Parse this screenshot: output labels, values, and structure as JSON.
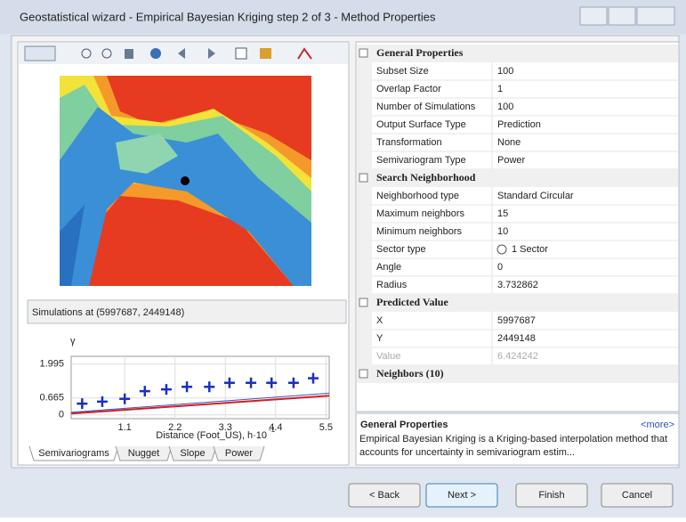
{
  "window": {
    "title": "Geostatistical wizard - Empirical Bayesian Kriging step 2 of 3 - Method Properties"
  },
  "simulations_label": "Simulations at (5997687, 2449148)",
  "semivariogram": {
    "y_label": "γ",
    "x_label": "Distance (Foot_US), h·10",
    "x_label_exp": "-1",
    "xlim": [
      -0.07,
      5.57
    ],
    "ylim": [
      -0.15,
      2.3
    ],
    "xticks": [
      1.1,
      2.2,
      3.3,
      4.4,
      5.5
    ],
    "yticks": [
      0,
      0.665,
      1.995
    ],
    "points": {
      "x": [
        0.17,
        0.61,
        1.1,
        1.54,
        2.01,
        2.46,
        2.95,
        3.39,
        3.86,
        4.31,
        4.79,
        5.22
      ],
      "y": [
        0.44,
        0.52,
        0.63,
        0.93,
        1.0,
        1.1,
        1.1,
        1.26,
        1.26,
        1.26,
        1.26,
        1.44
      ]
    }
  },
  "tabs": [
    "Semivariograms",
    "Nugget",
    "Slope",
    "Power"
  ],
  "properties": {
    "sections": [
      {
        "title": "General Properties",
        "rows": [
          [
            "Subset Size",
            "100"
          ],
          [
            "Overlap Factor",
            "1"
          ],
          [
            "Number of Simulations",
            "100"
          ],
          [
            "Output Surface Type",
            "Prediction"
          ],
          [
            "Transformation",
            "None"
          ],
          [
            "Semivariogram Type",
            "Power"
          ]
        ]
      },
      {
        "title": "Search Neighborhood",
        "rows": [
          [
            "Neighborhood type",
            "Standard Circular"
          ],
          [
            "Maximum neighbors",
            "15"
          ],
          [
            "Minimum neighbors",
            "10"
          ],
          [
            "Sector type",
            "1 Sector"
          ],
          [
            "Angle",
            "0"
          ],
          [
            "Radius",
            "3.732862"
          ]
        ]
      },
      {
        "title": "Predicted Value",
        "rows": [
          [
            "X",
            "5997687"
          ],
          [
            "Y",
            "2449148"
          ],
          [
            "Value",
            "6.424242"
          ]
        ]
      },
      {
        "title": "Neighbors (10)",
        "rows": []
      }
    ]
  },
  "description": {
    "title": "General Properties",
    "more": "<more>",
    "text": "Empirical Bayesian Kriging is a Kriging-based interpolation method that accounts for uncertainty in semivariogram estim..."
  },
  "buttons": [
    "< Back",
    "Next >",
    "Finish",
    "Cancel"
  ]
}
